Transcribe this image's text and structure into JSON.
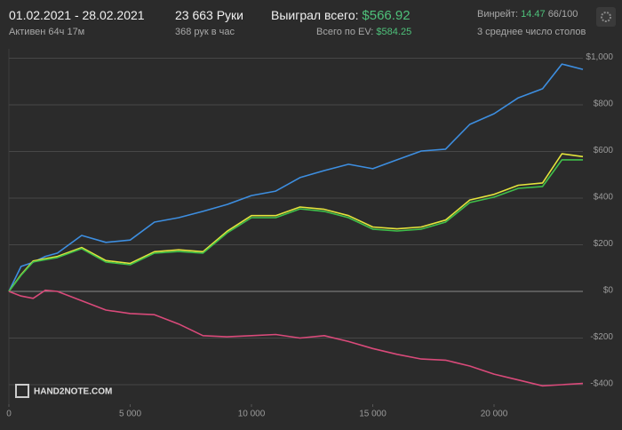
{
  "header": {
    "date_range": "01.02.2021 - 28.02.2021",
    "active": "Активен 64ч 17м",
    "hands": "23 663 Руки",
    "hands_per_hour": "368 рук в час",
    "won_label": "Выиграл всего:",
    "won_value": "$566.92",
    "ev_label": "Всего по EV:",
    "ev_value": "$584.25",
    "winrate_label": "Винрейт:",
    "winrate_value": "14.47",
    "winrate_unit": "66/100",
    "tables": "3 среднее число столов",
    "logo": "HAND2NOTE.COM"
  },
  "chart_data": {
    "type": "line",
    "x": [
      0,
      500,
      1000,
      1500,
      2000,
      3000,
      4000,
      5000,
      6000,
      7000,
      8000,
      9000,
      10000,
      11000,
      12000,
      13000,
      14000,
      15000,
      16000,
      17000,
      18000,
      19000,
      20000,
      21000,
      22000,
      22800,
      23663
    ],
    "series": [
      {
        "color": "#3d8ee0",
        "values": [
          0,
          107,
          125,
          150,
          164,
          240,
          210,
          220,
          297,
          316,
          343,
          373,
          411,
          430,
          488,
          518,
          545,
          526,
          564,
          602,
          610,
          716,
          762,
          830,
          869,
          975,
          952
        ]
      },
      {
        "color": "#e4e43c",
        "values": [
          0,
          72,
          130,
          140,
          150,
          188,
          132,
          120,
          170,
          178,
          170,
          258,
          325,
          325,
          362,
          352,
          325,
          276,
          268,
          276,
          306,
          392,
          416,
          455,
          465,
          590,
          578
        ]
      },
      {
        "color": "#3fbf4a",
        "values": [
          0,
          69,
          126,
          136,
          145,
          183,
          126,
          114,
          164,
          171,
          164,
          251,
          316,
          316,
          354,
          343,
          316,
          267,
          259,
          267,
          297,
          381,
          404,
          442,
          450,
          564,
          564
        ]
      },
      {
        "color": "#d94a7a",
        "values": [
          0,
          -20,
          -30,
          5,
          0,
          -40,
          -80,
          -95,
          -100,
          -140,
          -190,
          -195,
          -190,
          -185,
          -200,
          -190,
          -215,
          -245,
          -270,
          -290,
          -295,
          -320,
          -355,
          -380,
          -405,
          -400,
          -395
        ]
      }
    ],
    "xlim": [
      0,
      23663
    ],
    "xticks": [
      0,
      {
        "value": 5000,
        "label": "5 000"
      },
      {
        "value": 10000,
        "label": "10 000"
      },
      {
        "value": 15000,
        "label": "15 000"
      },
      {
        "value": 20000,
        "label": "20 000"
      }
    ],
    "ylim": [
      -484,
      1040
    ],
    "yticks": [
      {
        "value": -400,
        "label": "-$400"
      },
      {
        "value": -200,
        "label": "-$200"
      },
      {
        "value": 0,
        "label": "$0"
      },
      {
        "value": 200,
        "label": "$200"
      },
      {
        "value": 400,
        "label": "$400"
      },
      {
        "value": 600,
        "label": "$600"
      },
      {
        "value": 800,
        "label": "$800"
      },
      {
        "value": 1000,
        "label": "$1,000"
      }
    ],
    "grid": true
  }
}
